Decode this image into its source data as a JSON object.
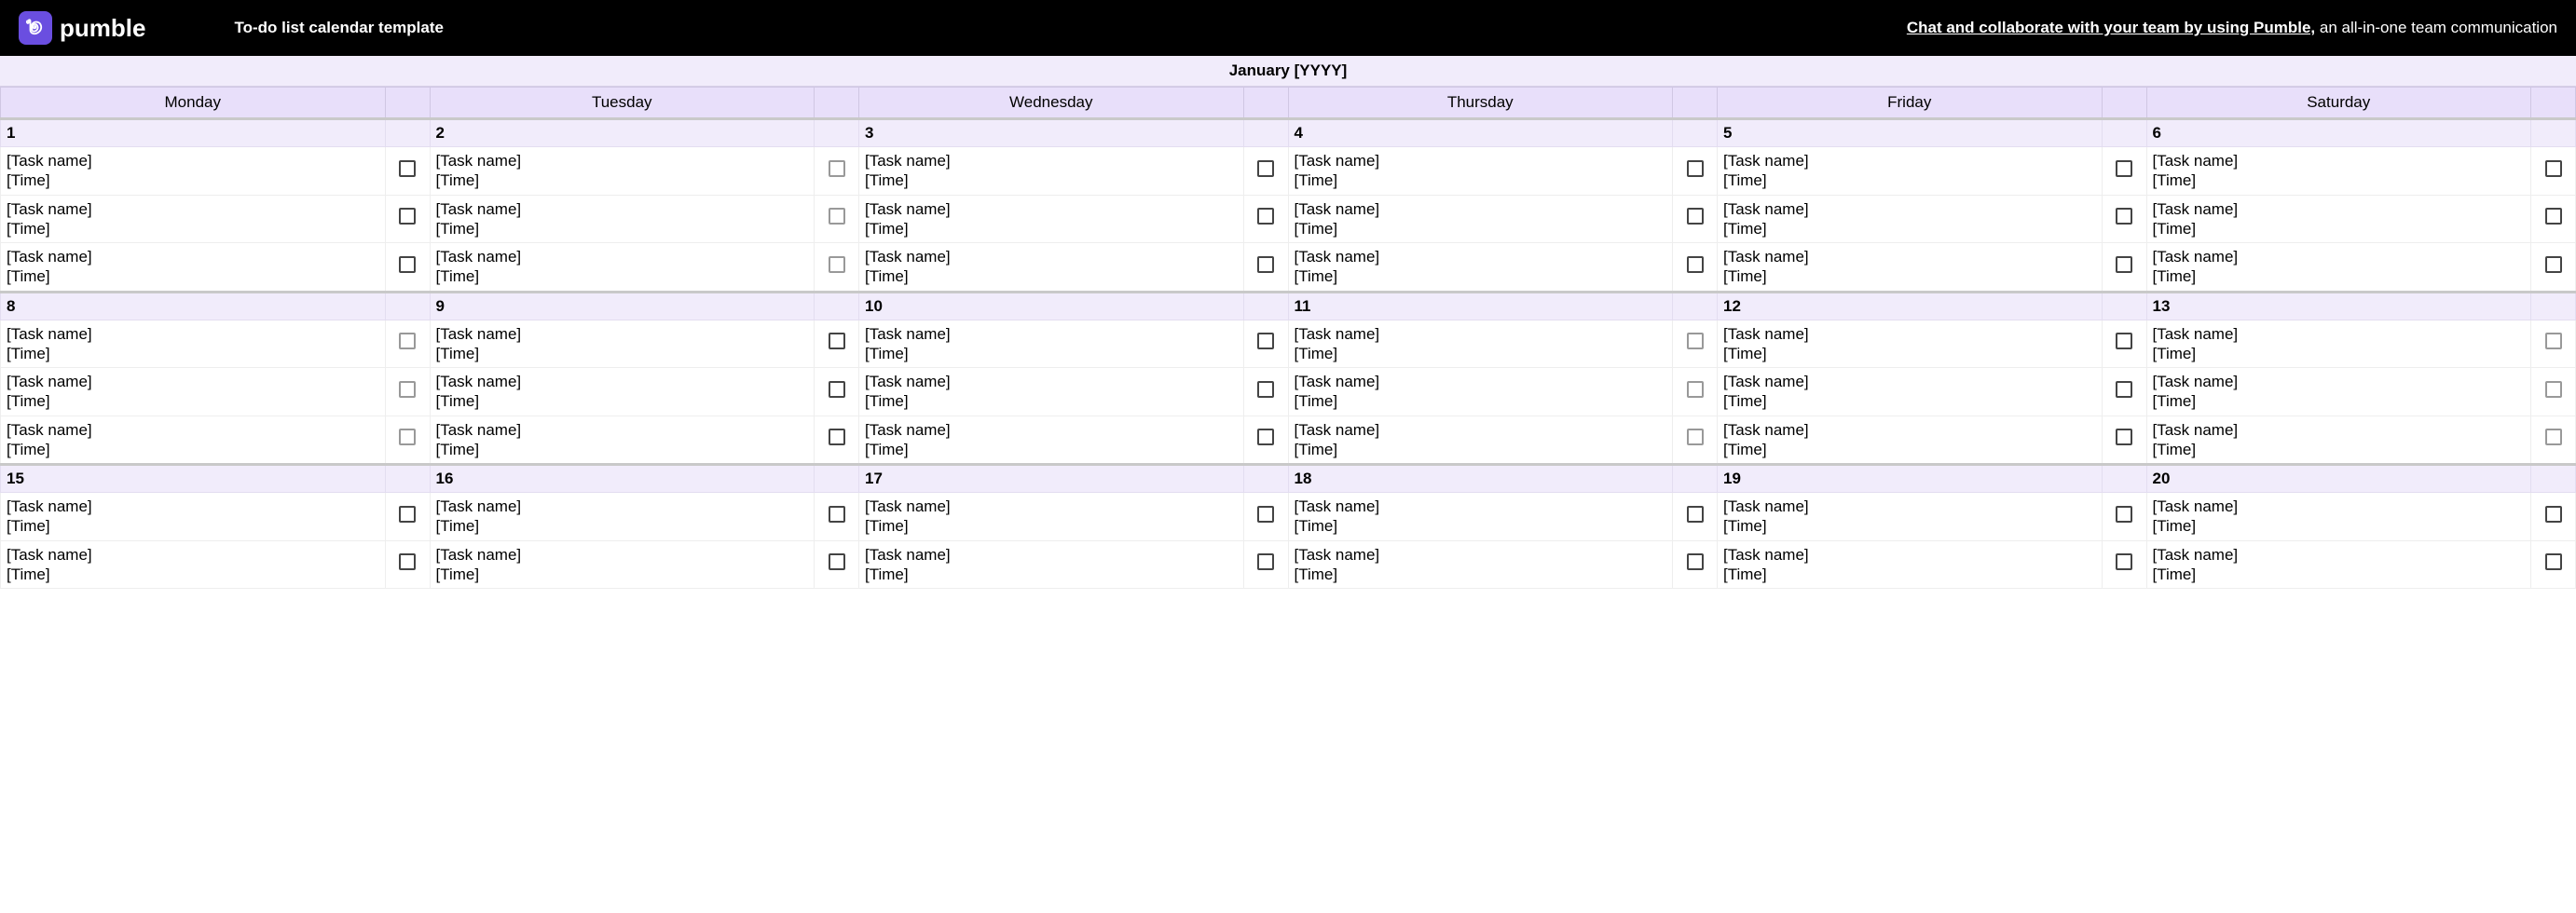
{
  "header": {
    "brand": "pumble",
    "template_title": "To-do list calendar template",
    "promo_underlined": "Chat and collaborate with your team by using Pumble,",
    "promo_rest": " an all-in-one team communication"
  },
  "calendar": {
    "month_title": "January [YYYY]",
    "day_names": [
      "Monday",
      "Tuesday",
      "Wednesday",
      "Thursday",
      "Friday",
      "Saturday"
    ],
    "task_placeholder_name": "[Task name]",
    "task_placeholder_time": "[Time]",
    "weeks": [
      {
        "dates": [
          "1",
          "2",
          "3",
          "4",
          "5",
          "6"
        ],
        "tasks_per_day": 3,
        "gray_checkbox_cols": [
          1
        ]
      },
      {
        "dates": [
          "8",
          "9",
          "10",
          "11",
          "12",
          "13"
        ],
        "tasks_per_day": 3,
        "gray_checkbox_cols": [
          0,
          3,
          5
        ]
      },
      {
        "dates": [
          "15",
          "16",
          "17",
          "18",
          "19",
          "20"
        ],
        "tasks_per_day": 2,
        "gray_checkbox_cols": []
      }
    ]
  },
  "styles": {
    "header_bg": "#000000",
    "logo_bg": "#6a4ee0",
    "month_bg": "#f1ecfb",
    "dayname_bg": "#e8dffa",
    "daynum_bg": "#f1ecfb",
    "border_light": "#eeeeee",
    "checkbox_border": "#444444",
    "checkbox_gray_border": "#999999"
  }
}
